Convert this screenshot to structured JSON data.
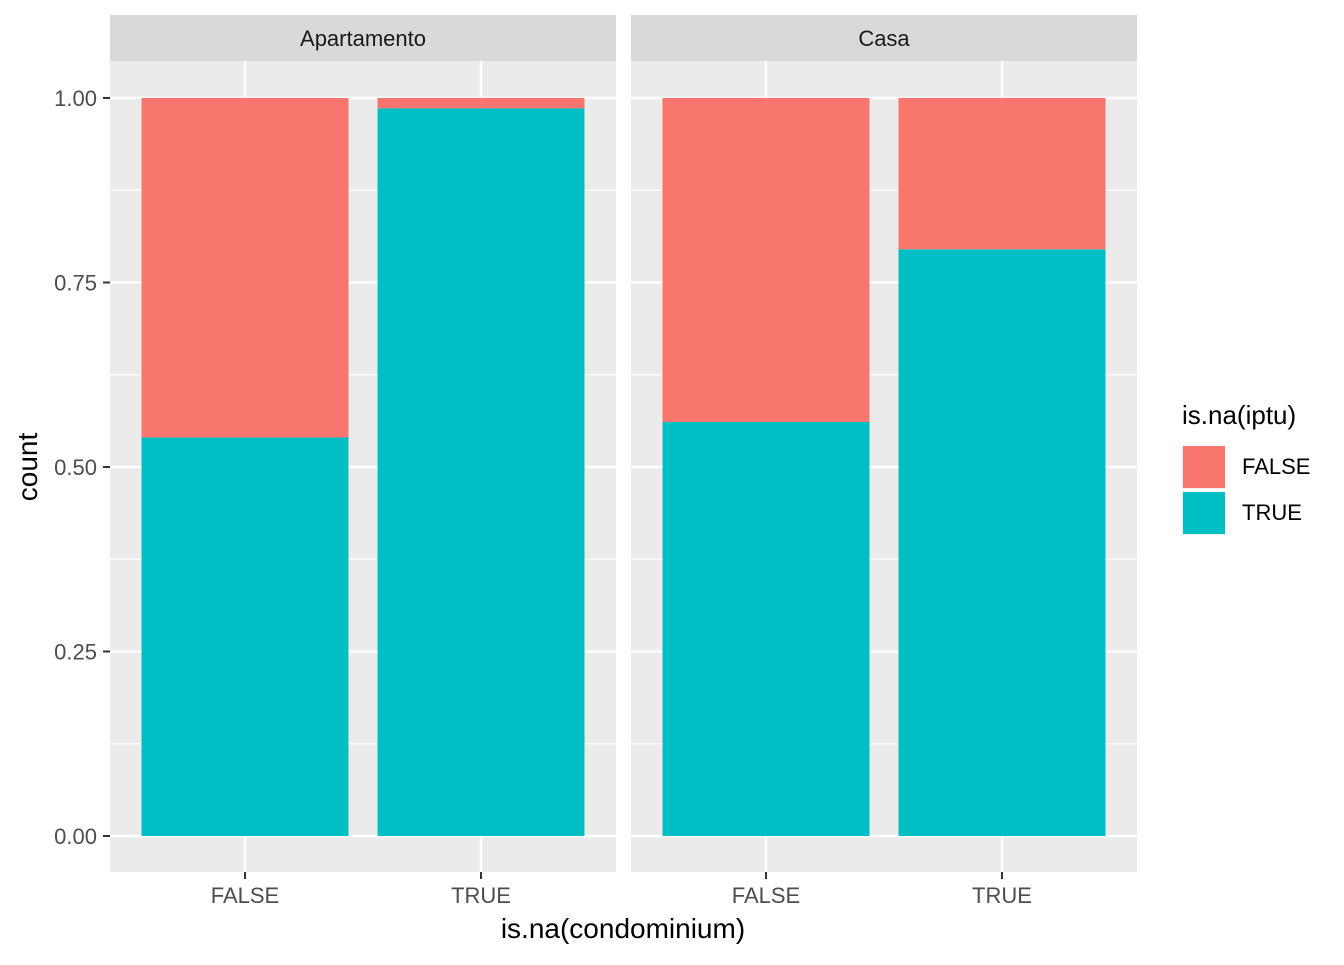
{
  "chart_data": {
    "type": "bar",
    "stacked": true,
    "position": "fill",
    "facet_variable_values": [
      "Apartamento",
      "Casa"
    ],
    "xlabel": "is.na(condominium)",
    "ylabel": "count",
    "categories": [
      "FALSE",
      "TRUE"
    ],
    "ylim": [
      0,
      1
    ],
    "y_ticks": [
      "0.00",
      "0.25",
      "0.50",
      "0.75",
      "1.00"
    ],
    "y_tick_values": [
      0,
      0.25,
      0.5,
      0.75,
      1.0
    ],
    "grid": true,
    "legend": {
      "title": "is.na(iptu)",
      "placement": "right",
      "entries": [
        {
          "label": "FALSE",
          "color": "#F8766D"
        },
        {
          "label": "TRUE",
          "color": "#00BFC4"
        }
      ]
    },
    "facets": [
      {
        "title": "Apartamento",
        "series": [
          {
            "name": "TRUE",
            "values": [
              0.54,
              0.986
            ]
          },
          {
            "name": "FALSE",
            "values": [
              0.46,
              0.014
            ]
          }
        ]
      },
      {
        "title": "Casa",
        "series": [
          {
            "name": "TRUE",
            "values": [
              0.561,
              0.795
            ]
          },
          {
            "name": "FALSE",
            "values": [
              0.439,
              0.205
            ]
          }
        ]
      }
    ],
    "colors": {
      "panel_bg": "#EBEBEB",
      "strip_bg": "#D9D9D9",
      "grid": "#FFFFFF",
      "text": "#4D4D4D",
      "title_text": "#000000",
      "strip_text": "#1A1A1A"
    }
  }
}
